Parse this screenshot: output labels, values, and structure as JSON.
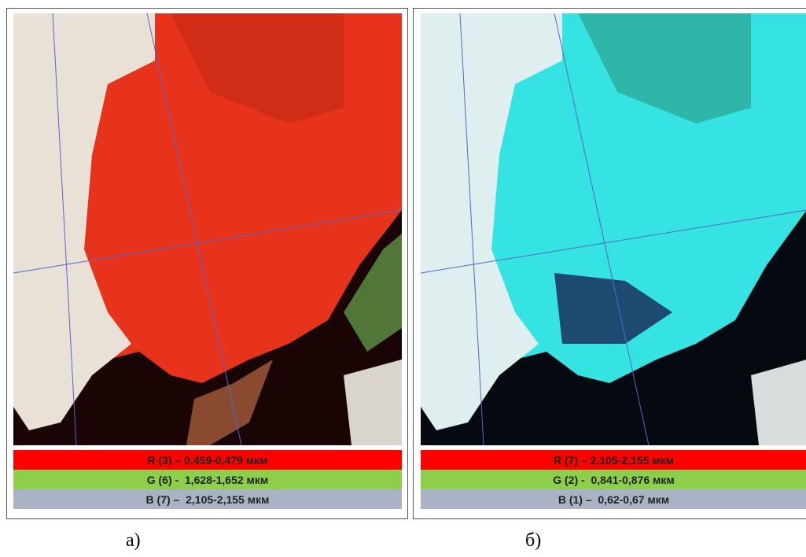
{
  "panels": [
    {
      "caption": "а)",
      "legend": [
        "R (3) – 0,459-0,479 мкм",
        "G (6) -  1,628-1,652 мкм",
        "B (7) –  2,105-2,155 мкм"
      ]
    },
    {
      "caption": "б)",
      "legend": [
        "R (7) – 2,105-2,155 мкм",
        "G (2) -  0,841-0,876 мкм",
        "B (1) –  0,62-0,67 мкм"
      ]
    }
  ]
}
